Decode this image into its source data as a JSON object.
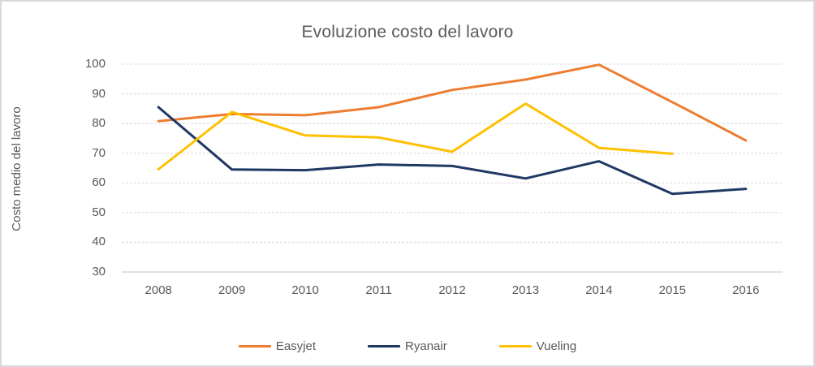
{
  "window": {
    "background": "#ffffff",
    "border_color": "#d9d9d9"
  },
  "chart_data": {
    "type": "line",
    "title": "Evoluzione costo del lavoro",
    "xlabel": "",
    "ylabel": "Costo medio del lavoro",
    "categories": [
      "2008",
      "2009",
      "2010",
      "2011",
      "2012",
      "2013",
      "2014",
      "2015",
      "2016"
    ],
    "series": [
      {
        "name": "Easyjet",
        "color": "#ED7D31",
        "values": [
          80.8,
          83.2,
          82.8,
          85.5,
          91.3,
          94.8,
          99.8,
          87.2,
          74.3
        ]
      },
      {
        "name": "Ryanair",
        "color": "#1F3864",
        "values": [
          85.5,
          64.5,
          64.3,
          66.2,
          65.7,
          61.5,
          67.3,
          56.3,
          58.0
        ]
      },
      {
        "name": "Vueling",
        "color": "#FFC000",
        "values": [
          64.6,
          83.9,
          76.0,
          75.3,
          70.5,
          86.7,
          71.8,
          69.8,
          null
        ]
      }
    ],
    "ylim": [
      30,
      100
    ],
    "yticks": [
      30,
      40,
      50,
      60,
      70,
      80,
      90,
      100
    ],
    "grid": true,
    "gridline_color": "#D9D9D9",
    "text_color": "#595959",
    "legend_position": "bottom",
    "line_width": 3
  }
}
